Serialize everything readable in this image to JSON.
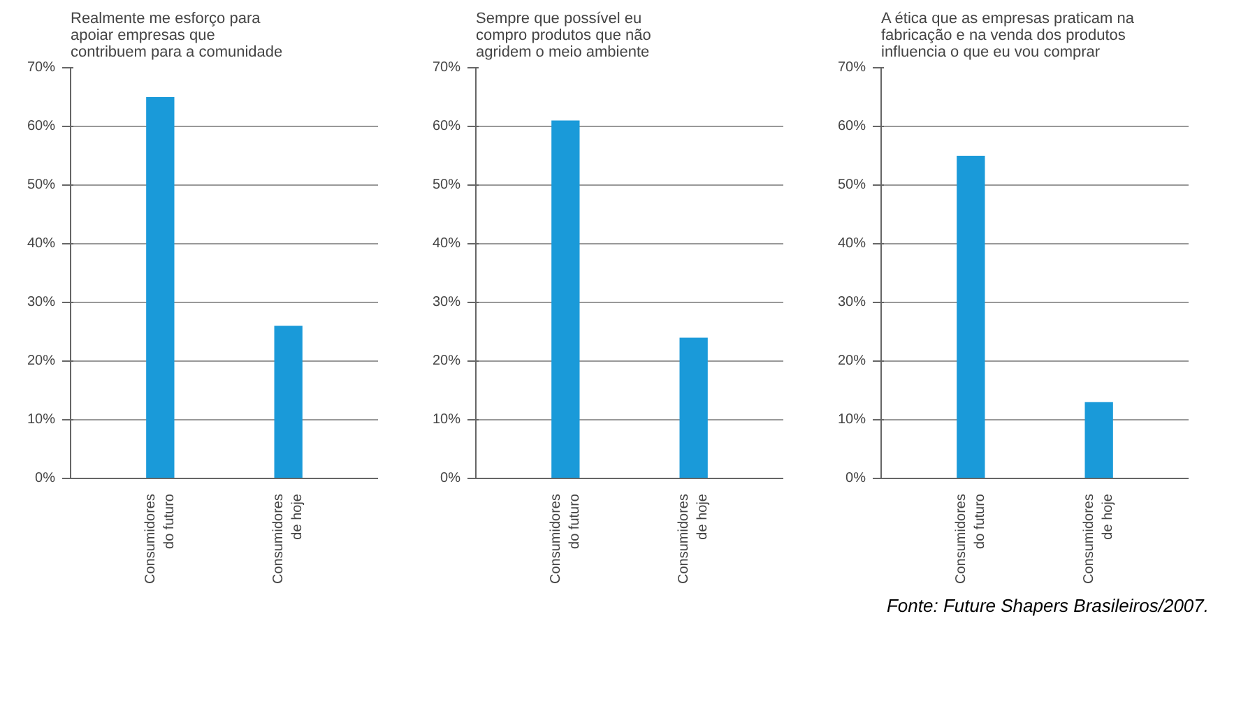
{
  "chart_data": [
    {
      "type": "bar",
      "title": "Realmente me esforço para\napoiar empresas que\ncontribuem para a comunidade",
      "categories": [
        "Consumidores\ndo futuro",
        "Consumidores\nde hoje"
      ],
      "values": [
        65,
        26
      ],
      "color": "#1a9ad9",
      "ylim": [
        0,
        70
      ],
      "yticks": [
        {
          "value": 0,
          "label": "0%"
        },
        {
          "value": 10,
          "label": "10%"
        },
        {
          "value": 20,
          "label": "20%"
        },
        {
          "value": 30,
          "label": "30%"
        },
        {
          "value": 40,
          "label": "40%"
        },
        {
          "value": 50,
          "label": "50%"
        },
        {
          "value": 60,
          "label": "60%"
        },
        {
          "value": 70,
          "label": "70%"
        }
      ],
      "grid": "y"
    },
    {
      "type": "bar",
      "title": "Sempre que possível eu\ncompro produtos que não\nagridem o meio ambiente",
      "categories": [
        "Consumidores\ndo futuro",
        "Consumidores\nde hoje"
      ],
      "values": [
        61,
        24
      ],
      "color": "#1a9ad9",
      "ylim": [
        0,
        70
      ],
      "yticks": [
        {
          "value": 0,
          "label": "0%"
        },
        {
          "value": 10,
          "label": "10%"
        },
        {
          "value": 20,
          "label": "20%"
        },
        {
          "value": 30,
          "label": "30%"
        },
        {
          "value": 40,
          "label": "40%"
        },
        {
          "value": 50,
          "label": "50%"
        },
        {
          "value": 60,
          "label": "60%"
        },
        {
          "value": 70,
          "label": "70%"
        }
      ],
      "grid": "y"
    },
    {
      "type": "bar",
      "title": "A ética que as empresas praticam na\nfabricação e na venda dos produtos\ninfluencia o que eu vou comprar",
      "categories": [
        "Consumidores\ndo futuro",
        "Consumidores\nde hoje"
      ],
      "values": [
        55,
        13
      ],
      "color": "#1a9ad9",
      "ylim": [
        0,
        70
      ],
      "yticks": [
        {
          "value": 0,
          "label": "0%"
        },
        {
          "value": 10,
          "label": "10%"
        },
        {
          "value": 20,
          "label": "20%"
        },
        {
          "value": 30,
          "label": "30%"
        },
        {
          "value": 40,
          "label": "40%"
        },
        {
          "value": 50,
          "label": "50%"
        },
        {
          "value": 60,
          "label": "60%"
        },
        {
          "value": 70,
          "label": "70%"
        }
      ],
      "grid": "y",
      "annotations": [
        "Fonte: Future Shapers Brasileiros/2007."
      ]
    }
  ]
}
